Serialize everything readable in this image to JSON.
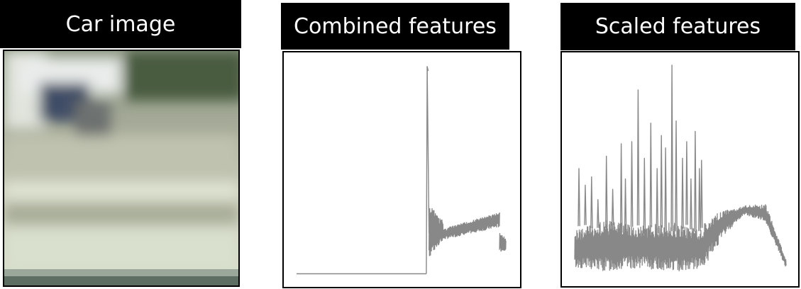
{
  "panels": {
    "car": {
      "label": "Car image"
    },
    "combined": {
      "label": "Combined features"
    },
    "scaled": {
      "label": "Scaled features"
    }
  },
  "colors": {
    "banner_bg": "#000000",
    "banner_text": "#ffffff",
    "plot_line": "#888888"
  },
  "icons": {
    "car_thumbnail": "blurred-car-photo"
  },
  "chart_data": [
    {
      "type": "line",
      "title": "Combined features",
      "xlabel": "",
      "ylabel": "",
      "grid": false,
      "xlim": [
        0,
        1
      ],
      "ylim": [
        0,
        1
      ],
      "series": [
        {
          "segments": [
            {
              "x": [
                0.0,
                0.62
              ],
              "y": [
                0.005,
                0.005
              ],
              "mode": "flat"
            },
            {
              "x": [
                0.62,
                0.624
              ],
              "y": [
                0.005,
                1.0
              ],
              "mode": "spike"
            },
            {
              "x": [
                0.624,
                0.633
              ],
              "y": [
                1.0,
                0.2
              ],
              "mode": "drop"
            },
            {
              "x": [
                0.633,
                0.7
              ],
              "y_min": [
                0.08,
                0.17
              ],
              "y_max": [
                0.34,
                0.26
              ],
              "mode": "band"
            },
            {
              "x": [
                0.7,
                0.97
              ],
              "y_min": [
                0.17,
                0.23
              ],
              "y_max": [
                0.22,
                0.3
              ],
              "mode": "band"
            },
            {
              "x": [
                0.97,
                1.0
              ],
              "y_min": [
                0.11,
                0.12
              ],
              "y_max": [
                0.21,
                0.17
              ],
              "mode": "band"
            }
          ]
        }
      ]
    },
    {
      "type": "line",
      "title": "Scaled features",
      "xlabel": "",
      "ylabel": "",
      "grid": false,
      "xlim": [
        0,
        1
      ],
      "ylim": [
        0,
        1
      ],
      "series": [
        {
          "band": {
            "x": [
              0.0,
              0.61
            ],
            "y_min": [
              0.02,
              0.0,
              0.02,
              0.0,
              0.02
            ],
            "y_max": [
              0.2,
              0.25,
              0.22,
              0.24,
              0.2
            ]
          },
          "spikes": [
            {
              "x": 0.02,
              "y": 0.5
            },
            {
              "x": 0.05,
              "y": 0.42
            },
            {
              "x": 0.08,
              "y": 0.46
            },
            {
              "x": 0.11,
              "y": 0.35
            },
            {
              "x": 0.15,
              "y": 0.56
            },
            {
              "x": 0.18,
              "y": 0.4
            },
            {
              "x": 0.22,
              "y": 0.62
            },
            {
              "x": 0.24,
              "y": 0.45
            },
            {
              "x": 0.27,
              "y": 0.63
            },
            {
              "x": 0.3,
              "y": 0.88
            },
            {
              "x": 0.33,
              "y": 0.55
            },
            {
              "x": 0.36,
              "y": 0.72
            },
            {
              "x": 0.39,
              "y": 0.5
            },
            {
              "x": 0.41,
              "y": 0.66
            },
            {
              "x": 0.43,
              "y": 0.6
            },
            {
              "x": 0.46,
              "y": 1.0
            },
            {
              "x": 0.48,
              "y": 0.73
            },
            {
              "x": 0.51,
              "y": 0.55
            },
            {
              "x": 0.53,
              "y": 0.63
            },
            {
              "x": 0.55,
              "y": 0.45
            },
            {
              "x": 0.57,
              "y": 0.68
            },
            {
              "x": 0.59,
              "y": 0.5
            },
            {
              "x": 0.6,
              "y": 0.54
            }
          ],
          "tail": {
            "x": [
              0.61,
              1.0
            ],
            "y_min": [
              0.02,
              0.18,
              0.28,
              0.24,
              0.02
            ],
            "y_max": [
              0.26,
              0.3,
              0.32,
              0.33,
              0.06
            ]
          }
        }
      ]
    }
  ]
}
